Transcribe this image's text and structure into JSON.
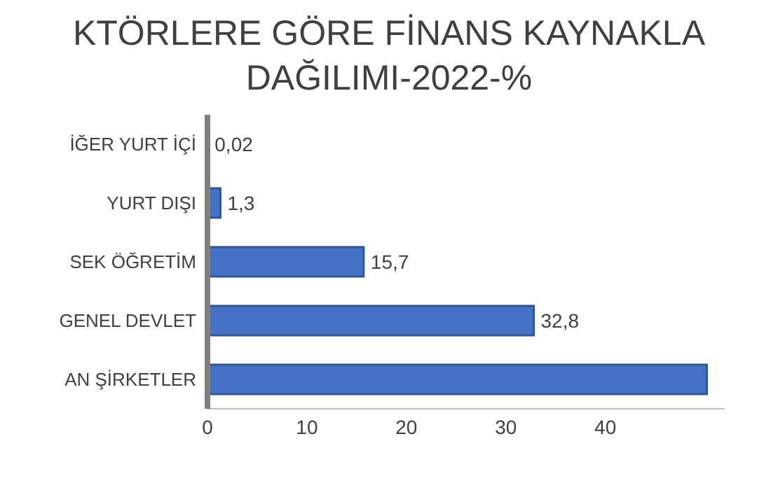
{
  "chart_data": {
    "type": "bar",
    "orientation": "horizontal",
    "title": "KTÖRLERE GÖRE FİNANS KAYNAKLA DAĞILIMI-2022-%",
    "categories": [
      "İĞER YURT İÇİ",
      "YURT DIŞI",
      "SEK ÖĞRETİM",
      "GENEL DEVLET",
      "AN ŞİRKETLER"
    ],
    "values": [
      0.02,
      1.3,
      15.7,
      32.8,
      50.2
    ],
    "value_labels": [
      "0,02",
      "1,3",
      "15,7",
      "32,8",
      null
    ],
    "color": "#4472c4",
    "xlim": [
      0,
      52
    ],
    "xticks": [
      0,
      10,
      20,
      30,
      40
    ]
  }
}
